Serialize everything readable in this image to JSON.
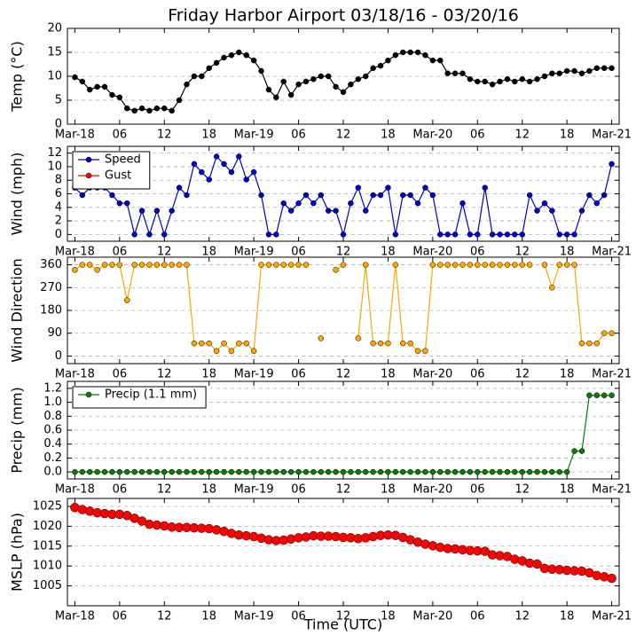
{
  "chart_data": [
    {
      "type": "line",
      "title": "Friday Harbor Airport 03/18/16 - 03/20/16",
      "ylabel": "Temp (°C)",
      "x": [
        0,
        1,
        2,
        3,
        4,
        5,
        6,
        7,
        8,
        9,
        10,
        11,
        12,
        13,
        14,
        15,
        16,
        17,
        18,
        19,
        20,
        21,
        22,
        23,
        24,
        25,
        26,
        27,
        28,
        29,
        30,
        31,
        32,
        33,
        34,
        35,
        36,
        37,
        38,
        39,
        40,
        41,
        42,
        43,
        44,
        45,
        46,
        47,
        48,
        49,
        50,
        51,
        52,
        53,
        54,
        55,
        56,
        57,
        58,
        59,
        60,
        61,
        62,
        63,
        64,
        65,
        66,
        67,
        68,
        69,
        70,
        71,
        72
      ],
      "xlim": [
        -1,
        73
      ],
      "xticks": [
        {
          "value": 0,
          "label": "Mar-18"
        },
        {
          "value": 6,
          "label": "06"
        },
        {
          "value": 12,
          "label": "12"
        },
        {
          "value": 18,
          "label": "18"
        },
        {
          "value": 24,
          "label": "Mar-19"
        },
        {
          "value": 30,
          "label": "06"
        },
        {
          "value": 36,
          "label": "12"
        },
        {
          "value": 42,
          "label": "18"
        },
        {
          "value": 48,
          "label": "Mar-20"
        },
        {
          "value": 54,
          "label": "06"
        },
        {
          "value": 60,
          "label": "12"
        },
        {
          "value": 66,
          "label": "18"
        },
        {
          "value": 72,
          "label": "Mar-21"
        }
      ],
      "ylim": [
        0,
        20
      ],
      "yticks": [
        0,
        5,
        10,
        15,
        20
      ],
      "grid": true,
      "series": [
        {
          "name": "Temp",
          "color": "#000000",
          "values": [
            9.8,
            8.9,
            7.2,
            7.8,
            7.8,
            6.1,
            5.6,
            3.3,
            2.8,
            3.3,
            2.8,
            3.3,
            3.3,
            2.8,
            5.0,
            8.3,
            10.0,
            10.0,
            11.7,
            12.8,
            13.9,
            14.4,
            15.0,
            14.4,
            13.3,
            11.1,
            7.2,
            5.6,
            8.9,
            6.1,
            8.3,
            8.9,
            9.4,
            10.0,
            10.0,
            7.8,
            6.7,
            8.3,
            9.4,
            10.0,
            11.7,
            12.2,
            13.3,
            14.4,
            15.0,
            15.0,
            15.0,
            14.4,
            13.3,
            13.3,
            10.6,
            10.6,
            10.6,
            9.4,
            8.9,
            8.9,
            8.3,
            8.9,
            9.4,
            8.9,
            9.4,
            8.9,
            9.4,
            10.0,
            10.6,
            10.6,
            11.1,
            11.1,
            10.6,
            11.1,
            11.7,
            11.7,
            11.7
          ]
        }
      ]
    },
    {
      "type": "line",
      "ylabel": "Wind (mph)",
      "x": [
        0,
        1,
        2,
        3,
        4,
        5,
        6,
        7,
        8,
        9,
        10,
        11,
        12,
        13,
        14,
        15,
        16,
        17,
        18,
        19,
        20,
        21,
        22,
        23,
        24,
        25,
        26,
        27,
        28,
        29,
        30,
        31,
        32,
        33,
        34,
        35,
        36,
        37,
        38,
        39,
        40,
        41,
        42,
        43,
        44,
        45,
        46,
        47,
        48,
        49,
        50,
        51,
        52,
        53,
        54,
        55,
        56,
        57,
        58,
        59,
        60,
        61,
        62,
        63,
        64,
        65,
        66,
        67,
        68,
        69,
        70,
        71,
        72
      ],
      "xlim": [
        -1,
        73
      ],
      "xticks": [
        {
          "value": 0,
          "label": "Mar-18"
        },
        {
          "value": 6,
          "label": "06"
        },
        {
          "value": 12,
          "label": "12"
        },
        {
          "value": 18,
          "label": "18"
        },
        {
          "value": 24,
          "label": "Mar-19"
        },
        {
          "value": 30,
          "label": "06"
        },
        {
          "value": 36,
          "label": "12"
        },
        {
          "value": 42,
          "label": "18"
        },
        {
          "value": 48,
          "label": "Mar-20"
        },
        {
          "value": 54,
          "label": "06"
        },
        {
          "value": 60,
          "label": "12"
        },
        {
          "value": 66,
          "label": "18"
        },
        {
          "value": 72,
          "label": "Mar-21"
        }
      ],
      "ylim": [
        -1,
        13
      ],
      "yticks": [
        0,
        2,
        4,
        6,
        8,
        10,
        12
      ],
      "grid": true,
      "legend": "upper left",
      "series": [
        {
          "name": "Speed",
          "color": "#0000cc",
          "values": [
            6.9,
            5.8,
            6.9,
            6.9,
            6.9,
            5.8,
            4.6,
            4.6,
            0,
            3.5,
            0,
            3.5,
            0,
            3.5,
            6.9,
            5.8,
            10.4,
            9.2,
            8.1,
            11.5,
            10.4,
            9.2,
            11.5,
            8.1,
            9.2,
            5.8,
            0,
            0,
            4.6,
            3.5,
            4.6,
            5.8,
            4.6,
            5.8,
            3.5,
            3.5,
            0,
            4.6,
            6.9,
            3.5,
            5.8,
            5.8,
            6.9,
            0,
            5.8,
            5.8,
            4.6,
            6.9,
            5.8,
            0,
            0,
            0,
            4.6,
            0,
            0,
            6.9,
            0,
            0,
            0,
            0,
            0,
            5.8,
            3.5,
            4.6,
            3.5,
            0,
            0,
            0,
            3.5,
            5.8,
            4.6,
            5.8,
            10.4
          ]
        },
        {
          "name": "Gust",
          "color": "#ff0000",
          "values": [
            null,
            null,
            null,
            null,
            null,
            null,
            null,
            null,
            null,
            null,
            null,
            null,
            null,
            null,
            null,
            null,
            null,
            null,
            null,
            null,
            null,
            null,
            null,
            null,
            null,
            null,
            null,
            null,
            null,
            null,
            null,
            null,
            null,
            null,
            null,
            null,
            null,
            null,
            null,
            null,
            null,
            null,
            null,
            null,
            null,
            null,
            null,
            null,
            null,
            null,
            null,
            null,
            null,
            null,
            null,
            null,
            null,
            null,
            null,
            null,
            null,
            null,
            null,
            null,
            null,
            null,
            null,
            null,
            null,
            null,
            null,
            null,
            null
          ]
        }
      ]
    },
    {
      "type": "line",
      "ylabel": "Wind Direction",
      "x": [
        0,
        1,
        2,
        3,
        4,
        5,
        6,
        7,
        8,
        9,
        10,
        11,
        12,
        13,
        14,
        15,
        16,
        17,
        18,
        19,
        20,
        21,
        22,
        23,
        24,
        25,
        26,
        27,
        28,
        29,
        30,
        31,
        32,
        33,
        34,
        35,
        36,
        37,
        38,
        39,
        40,
        41,
        42,
        43,
        44,
        45,
        46,
        47,
        48,
        49,
        50,
        51,
        52,
        53,
        54,
        55,
        56,
        57,
        58,
        59,
        60,
        61,
        62,
        63,
        64,
        65,
        66,
        67,
        68,
        69,
        70,
        71,
        72
      ],
      "xlim": [
        -1,
        73
      ],
      "xticks": [
        {
          "value": 0,
          "label": "Mar-18"
        },
        {
          "value": 6,
          "label": "06"
        },
        {
          "value": 12,
          "label": "12"
        },
        {
          "value": 18,
          "label": "18"
        },
        {
          "value": 24,
          "label": "Mar-19"
        },
        {
          "value": 30,
          "label": "06"
        },
        {
          "value": 36,
          "label": "12"
        },
        {
          "value": 42,
          "label": "18"
        },
        {
          "value": 48,
          "label": "Mar-20"
        },
        {
          "value": 54,
          "label": "06"
        },
        {
          "value": 60,
          "label": "12"
        },
        {
          "value": 66,
          "label": "18"
        },
        {
          "value": 72,
          "label": "Mar-21"
        }
      ],
      "ylim": [
        -30,
        390
      ],
      "yticks": [
        0,
        90,
        180,
        270,
        360
      ],
      "grid": true,
      "series": [
        {
          "name": "Wind Direction",
          "color": "#ffa500",
          "values": [
            340,
            360,
            360,
            340,
            360,
            360,
            360,
            220,
            360,
            360,
            360,
            360,
            360,
            360,
            360,
            360,
            50,
            50,
            50,
            20,
            50,
            20,
            50,
            50,
            20,
            360,
            360,
            360,
            360,
            360,
            360,
            360,
            null,
            70,
            null,
            340,
            360,
            null,
            70,
            360,
            50,
            50,
            50,
            360,
            50,
            50,
            20,
            20,
            360,
            360,
            360,
            360,
            360,
            360,
            360,
            360,
            360,
            360,
            360,
            360,
            360,
            360,
            null,
            360,
            270,
            360,
            360,
            360,
            50,
            50,
            50,
            90,
            90
          ]
        }
      ]
    },
    {
      "type": "line",
      "ylabel": "Precip (mm)",
      "x": [
        0,
        1,
        2,
        3,
        4,
        5,
        6,
        7,
        8,
        9,
        10,
        11,
        12,
        13,
        14,
        15,
        16,
        17,
        18,
        19,
        20,
        21,
        22,
        23,
        24,
        25,
        26,
        27,
        28,
        29,
        30,
        31,
        32,
        33,
        34,
        35,
        36,
        37,
        38,
        39,
        40,
        41,
        42,
        43,
        44,
        45,
        46,
        47,
        48,
        49,
        50,
        51,
        52,
        53,
        54,
        55,
        56,
        57,
        58,
        59,
        60,
        61,
        62,
        63,
        64,
        65,
        66,
        67,
        68,
        69,
        70,
        71,
        72
      ],
      "xlim": [
        -1,
        73
      ],
      "xticks": [
        {
          "value": 0,
          "label": "Mar-18"
        },
        {
          "value": 6,
          "label": "06"
        },
        {
          "value": 12,
          "label": "12"
        },
        {
          "value": 18,
          "label": "18"
        },
        {
          "value": 24,
          "label": "Mar-19"
        },
        {
          "value": 30,
          "label": "06"
        },
        {
          "value": 36,
          "label": "12"
        },
        {
          "value": 42,
          "label": "18"
        },
        {
          "value": 48,
          "label": "Mar-20"
        },
        {
          "value": 54,
          "label": "06"
        },
        {
          "value": 60,
          "label": "12"
        },
        {
          "value": 66,
          "label": "18"
        },
        {
          "value": 72,
          "label": "Mar-21"
        }
      ],
      "ylim": [
        -0.1,
        1.3
      ],
      "yticks": [
        {
          "value": 0,
          "label": "0.0"
        },
        0.2,
        0.4,
        0.6,
        0.8,
        {
          "value": 1,
          "label": "1.0"
        },
        1.2
      ],
      "grid": true,
      "legend": "upper left",
      "series": [
        {
          "name": "Precip (1.1 mm)",
          "color": "#007f00",
          "values": [
            0,
            0,
            0,
            0,
            0,
            0,
            0,
            0,
            0,
            0,
            0,
            0,
            0,
            0,
            0,
            0,
            0,
            0,
            0,
            0,
            0,
            0,
            0,
            0,
            0,
            0,
            0,
            0,
            0,
            0,
            0,
            0,
            0,
            0,
            0,
            0,
            0,
            0,
            0,
            0,
            0,
            0,
            0,
            0,
            0,
            0,
            0,
            0,
            0,
            0,
            0,
            0,
            0,
            0,
            0,
            0,
            0,
            0,
            0,
            0,
            0,
            0,
            0,
            0,
            0,
            0,
            0,
            0.3,
            0.3,
            1.1,
            1.1,
            1.1,
            1.1
          ]
        }
      ]
    },
    {
      "type": "line",
      "ylabel": "MSLP (hPa)",
      "xlabel": "Time (UTC)",
      "x": [
        0,
        1,
        2,
        3,
        4,
        5,
        6,
        7,
        8,
        9,
        10,
        11,
        12,
        13,
        14,
        15,
        16,
        17,
        18,
        19,
        20,
        21,
        22,
        23,
        24,
        25,
        26,
        27,
        28,
        29,
        30,
        31,
        32,
        33,
        34,
        35,
        36,
        37,
        38,
        39,
        40,
        41,
        42,
        43,
        44,
        45,
        46,
        47,
        48,
        49,
        50,
        51,
        52,
        53,
        54,
        55,
        56,
        57,
        58,
        59,
        60,
        61,
        62,
        63,
        64,
        65,
        66,
        67,
        68,
        69,
        70,
        71,
        72
      ],
      "xlim": [
        -1,
        73
      ],
      "xticks": [
        {
          "value": 0,
          "label": "Mar-18"
        },
        {
          "value": 6,
          "label": "06"
        },
        {
          "value": 12,
          "label": "12"
        },
        {
          "value": 18,
          "label": "18"
        },
        {
          "value": 24,
          "label": "Mar-19"
        },
        {
          "value": 30,
          "label": "06"
        },
        {
          "value": 36,
          "label": "12"
        },
        {
          "value": 42,
          "label": "18"
        },
        {
          "value": 48,
          "label": "Mar-20"
        },
        {
          "value": 54,
          "label": "06"
        },
        {
          "value": 60,
          "label": "12"
        },
        {
          "value": 66,
          "label": "18"
        },
        {
          "value": 72,
          "label": "Mar-21"
        }
      ],
      "ylim": [
        1000,
        1027
      ],
      "yticks": [
        1005,
        1010,
        1015,
        1020,
        1025
      ],
      "grid": true,
      "series": [
        {
          "name": "MSLP",
          "color": "#ff0000",
          "values": [
            1024.7,
            1024.2,
            1023.8,
            1023.4,
            1023.2,
            1023.0,
            1023.0,
            1022.7,
            1022.0,
            1021.3,
            1020.5,
            1020.3,
            1020.1,
            1019.8,
            1019.7,
            1019.7,
            1019.6,
            1019.5,
            1019.4,
            1019.1,
            1018.7,
            1018.2,
            1017.8,
            1017.6,
            1017.4,
            1017.0,
            1016.6,
            1016.4,
            1016.5,
            1016.8,
            1017.1,
            1017.3,
            1017.6,
            1017.5,
            1017.5,
            1017.4,
            1017.2,
            1017.1,
            1016.9,
            1017.1,
            1017.4,
            1017.7,
            1017.8,
            1017.7,
            1017.2,
            1016.6,
            1016.0,
            1015.5,
            1015.1,
            1014.7,
            1014.4,
            1014.3,
            1014.1,
            1013.9,
            1013.8,
            1013.7,
            1012.8,
            1012.6,
            1012.4,
            1011.7,
            1011.3,
            1010.7,
            1010.5,
            1009.4,
            1009.2,
            1009.1,
            1008.9,
            1008.8,
            1008.7,
            1008.3,
            1007.6,
            1007.3,
            1006.9
          ]
        }
      ]
    }
  ]
}
